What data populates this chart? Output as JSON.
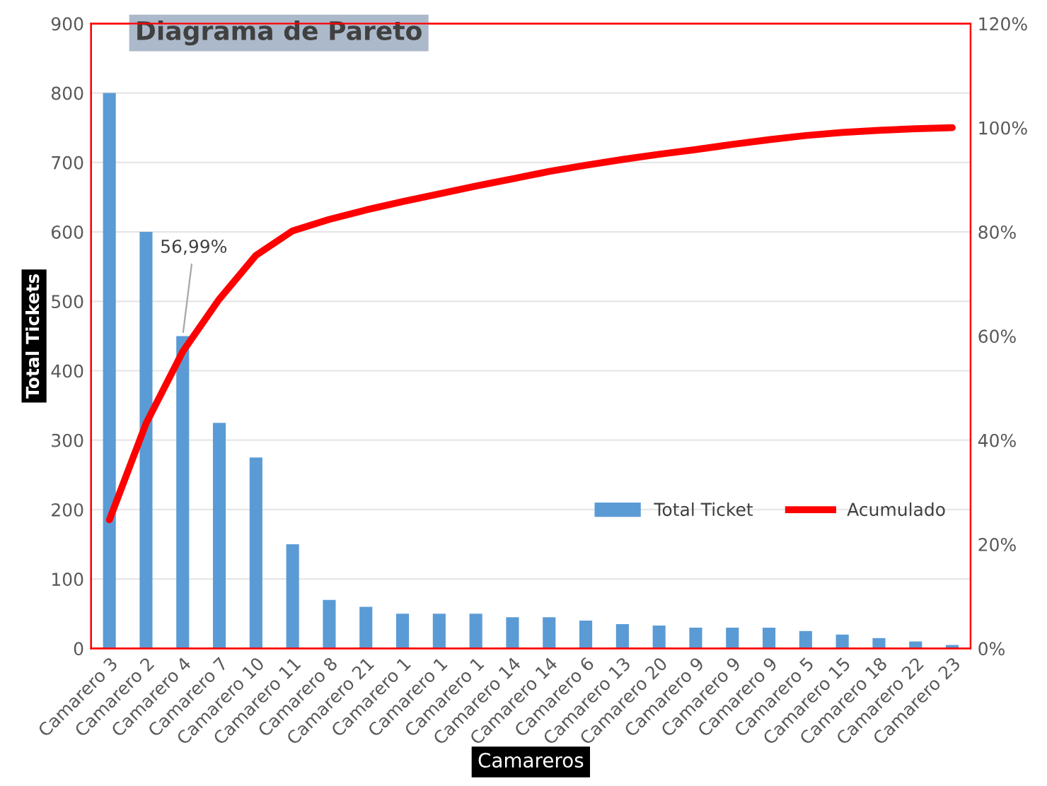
{
  "chart_data": {
    "type": "bar",
    "title": "Diagrama de Pareto",
    "xlabel": "Camareros",
    "ylabel": "Total Tickets",
    "categories": [
      "Camarero 3",
      "Camarero 2",
      "Camarero 4",
      "Camarero 7",
      "Camarero 10",
      "Camarero 11",
      "Camarero 8",
      "Camarero 21",
      "Camarero 1",
      "Camarero 1",
      "Camarero 1",
      "Camarero 14",
      "Camarero 14",
      "Camarero 6",
      "Camarero 13",
      "Camarero 20",
      "Camarero 9",
      "Camarero 9",
      "Camarero 9",
      "Camarero 5",
      "Camarero 15",
      "Camarero 18",
      "Camarero 22",
      "Camarero 23"
    ],
    "series": [
      {
        "name": "Total Ticket",
        "color": "#5b9bd5",
        "values": [
          800,
          600,
          450,
          325,
          275,
          150,
          70,
          60,
          50,
          50,
          50,
          45,
          45,
          40,
          35,
          33,
          30,
          30,
          30,
          25,
          20,
          15,
          10,
          5
        ]
      },
      {
        "name": "Acumulado",
        "type": "line",
        "axis": "y2",
        "color": "#ff0000",
        "line_style": "solid",
        "values": [
          24.7,
          43.2,
          56.99,
          67.1,
          75.5,
          80.2,
          82.4,
          84.2,
          85.8,
          87.3,
          88.8,
          90.2,
          91.6,
          92.8,
          93.9,
          94.9,
          95.8,
          96.8,
          97.7,
          98.5,
          99.1,
          99.5,
          99.8,
          100
        ]
      }
    ],
    "ylim": [
      0,
      900
    ],
    "yticks": [
      0,
      100,
      200,
      300,
      400,
      500,
      600,
      700,
      800,
      900
    ],
    "y2lim": [
      0,
      120
    ],
    "y2ticks": [
      {
        "value": 0,
        "label": "0%"
      },
      {
        "value": 20,
        "label": "20%"
      },
      {
        "value": 40,
        "label": "40%"
      },
      {
        "value": 60,
        "label": "60%"
      },
      {
        "value": 80,
        "label": "80%"
      },
      {
        "value": 100,
        "label": "100%"
      },
      {
        "value": 120,
        "label": "120%"
      }
    ],
    "annotations": [
      {
        "text": "56,99%",
        "x": "Camarero 4",
        "y": 450
      }
    ],
    "grid": "y",
    "legend": "right",
    "marker": "none"
  }
}
